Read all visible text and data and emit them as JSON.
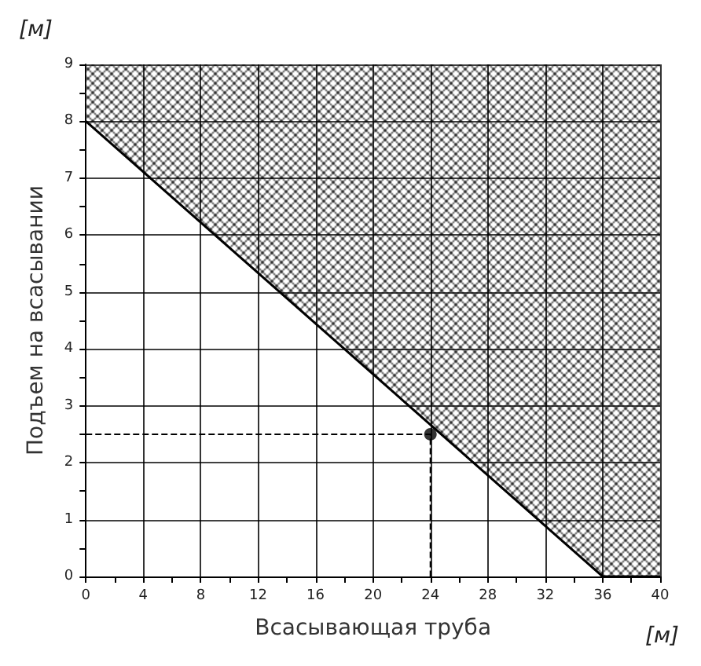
{
  "chart_data": {
    "type": "line",
    "xlabel": "Всасывающая труба",
    "ylabel": "Подъем на всасывании",
    "annotations": [
      "[м]",
      "[м]"
    ],
    "series": [
      {
        "color": "#000000",
        "marker": "none",
        "x": [
          0,
          36,
          40
        ],
        "values": [
          8,
          0,
          0
        ],
        "lower": [
          8,
          0,
          0
        ],
        "upper": [
          9,
          9,
          9
        ]
      },
      {
        "type": "line",
        "color": "#000000",
        "marker": "none",
        "line_style": "dashed",
        "x": [
          0,
          24,
          24
        ],
        "values": [
          2.5,
          2.5,
          0
        ]
      },
      {
        "type": "scatter",
        "color": "#000000",
        "marker": "circle",
        "x": [
          24
        ],
        "values": [
          2.5
        ]
      }
    ],
    "xlim": [
      0,
      40
    ],
    "ylim": [
      0,
      9
    ],
    "xticks": [
      0,
      {
        "value": 2,
        "label": null
      },
      4,
      {
        "value": 6,
        "label": null
      },
      8,
      {
        "value": 10,
        "label": null
      },
      12,
      {
        "value": 14,
        "label": null
      },
      16,
      {
        "value": 18,
        "label": null
      },
      20,
      {
        "value": 22,
        "label": null
      },
      24,
      {
        "value": 26,
        "label": null
      },
      28,
      {
        "value": 30,
        "label": null
      },
      32,
      {
        "value": 34,
        "label": null
      },
      36,
      {
        "value": 38,
        "label": null
      },
      40
    ],
    "yticks": [
      0,
      {
        "value": 0.5,
        "label": null
      },
      1,
      {
        "value": 1.5,
        "label": null
      },
      2,
      {
        "value": 2.5,
        "label": null
      },
      3,
      {
        "value": 3.5,
        "label": null
      },
      4,
      {
        "value": 4.5,
        "label": null
      },
      5,
      {
        "value": 5.5,
        "label": null
      },
      6,
      {
        "value": 6.5,
        "label": null
      },
      7,
      {
        "value": 7.5,
        "label": null
      },
      8,
      {
        "value": 8.5,
        "label": null
      },
      9
    ],
    "grid": true
  }
}
